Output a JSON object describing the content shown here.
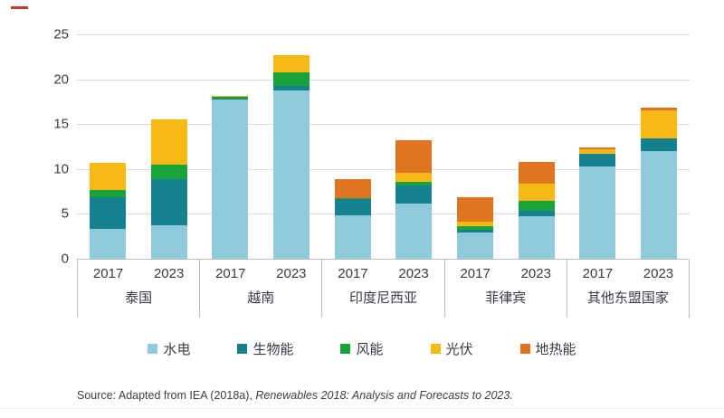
{
  "chart_data": {
    "type": "bar",
    "stacked": true,
    "ylim": [
      0,
      25
    ],
    "yticks": [
      0,
      5,
      10,
      15,
      20,
      25
    ],
    "grid": true,
    "legend_position": "bottom",
    "series_names": [
      "水电",
      "生物能",
      "风能",
      "光伏",
      "地热能"
    ],
    "series_colors": [
      "#8fcbdc",
      "#15808e",
      "#18a43b",
      "#f9b915",
      "#df7320"
    ],
    "groups": [
      {
        "label": "泰国",
        "bars": [
          {
            "year": "2017",
            "values": [
              3.3,
              3.6,
              0.8,
              3.0,
              0.0
            ]
          },
          {
            "year": "2023",
            "values": [
              3.7,
              5.2,
              1.6,
              5.0,
              0.0
            ]
          }
        ]
      },
      {
        "label": "越南",
        "bars": [
          {
            "year": "2017",
            "values": [
              17.7,
              0.1,
              0.2,
              0.1,
              0.0
            ]
          },
          {
            "year": "2023",
            "values": [
              18.8,
              0.5,
              1.5,
              1.9,
              0.0
            ]
          }
        ]
      },
      {
        "label": "印度尼西亚",
        "bars": [
          {
            "year": "2017",
            "values": [
              4.8,
              1.9,
              0.1,
              0.0,
              2.1
            ]
          },
          {
            "year": "2023",
            "values": [
              6.2,
              2.0,
              0.4,
              1.0,
              3.6
            ]
          }
        ]
      },
      {
        "label": "菲律宾",
        "bars": [
          {
            "year": "2017",
            "values": [
              2.9,
              0.3,
              0.4,
              0.5,
              2.8
            ]
          },
          {
            "year": "2023",
            "values": [
              4.7,
              0.6,
              1.2,
              1.9,
              2.4
            ]
          }
        ]
      },
      {
        "label": "其他东盟国家",
        "bars": [
          {
            "year": "2017",
            "values": [
              10.3,
              1.4,
              0.0,
              0.5,
              0.2
            ]
          },
          {
            "year": "2023",
            "values": [
              12.0,
              1.4,
              0.0,
              3.1,
              0.3
            ]
          }
        ]
      }
    ]
  },
  "legend": {
    "items": [
      {
        "label": "水电",
        "color": "#8fcbdc"
      },
      {
        "label": "生物能",
        "color": "#15808e"
      },
      {
        "label": "风能",
        "color": "#18a43b"
      },
      {
        "label": "光伏",
        "color": "#f9b915"
      },
      {
        "label": "地热能",
        "color": "#df7320"
      }
    ]
  },
  "source": {
    "prefix": "Source: Adapted from IEA (2018a), ",
    "italic": "Renewables 2018: Analysis and Forecasts to 2023."
  },
  "style": {
    "grid_color": "#d9d9d9",
    "axis_box_color": "#bfbfbf",
    "text_color": "#3a3a44"
  }
}
